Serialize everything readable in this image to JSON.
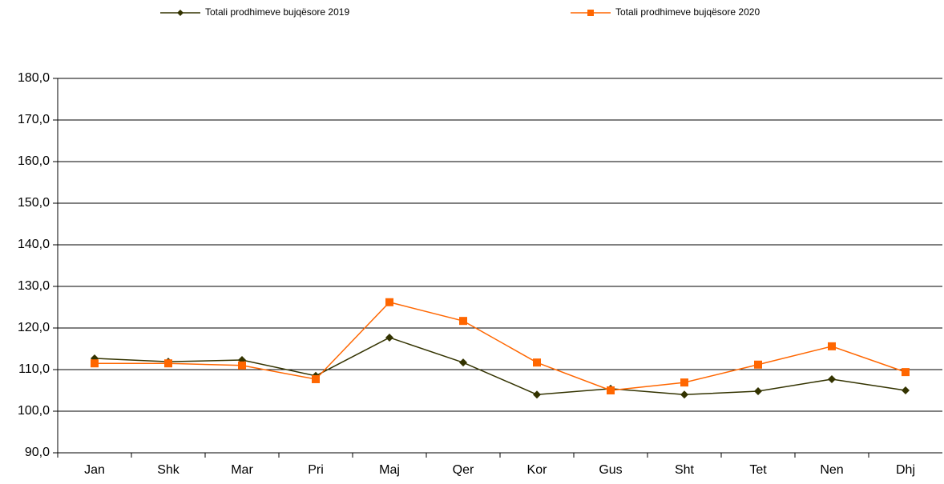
{
  "chart_data": {
    "type": "line",
    "categories": [
      "Jan",
      "Shk",
      "Mar",
      "Pri",
      "Maj",
      "Qer",
      "Kor",
      "Gus",
      "Sht",
      "Tet",
      "Nen",
      "Dhj"
    ],
    "series": [
      {
        "name": "Totali prodhimeve bujqësore 2019",
        "color": "#333300",
        "marker": "diamond",
        "values": [
          112.7,
          111.9,
          112.3,
          108.5,
          117.7,
          111.7,
          104.0,
          105.4,
          104.0,
          104.8,
          107.7,
          105.0
        ]
      },
      {
        "name": "Totali prodhimeve bujqësore 2020",
        "color": "#ff6600",
        "marker": "square",
        "values": [
          111.5,
          111.5,
          111.0,
          107.7,
          126.2,
          121.7,
          111.7,
          105.0,
          106.9,
          111.2,
          115.6,
          109.4
        ]
      }
    ],
    "ylim": [
      90,
      180
    ],
    "yticks": [
      {
        "value": 90,
        "label": "90,0"
      },
      {
        "value": 100,
        "label": "100,0"
      },
      {
        "value": 110,
        "label": "110,0"
      },
      {
        "value": 120,
        "label": "120,0"
      },
      {
        "value": 130,
        "label": "130,0"
      },
      {
        "value": 140,
        "label": "140,0"
      },
      {
        "value": 150,
        "label": "150,0"
      },
      {
        "value": 160,
        "label": "160,0"
      },
      {
        "value": 170,
        "label": "170,0"
      },
      {
        "value": 180,
        "label": "180,0"
      }
    ],
    "grid": true,
    "legend": "top"
  }
}
